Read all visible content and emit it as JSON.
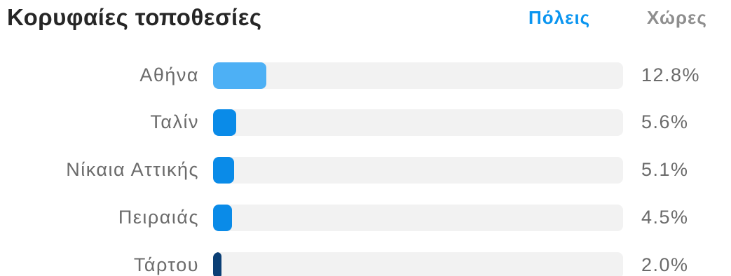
{
  "header": {
    "title": "Κορυφαίες τοποθεσίες",
    "tabs": [
      {
        "label": "Πόλεις",
        "active": true
      },
      {
        "label": "Χώρες",
        "active": false
      }
    ]
  },
  "colors": {
    "accent": "#0a95f0",
    "track": "#f2f2f2",
    "text_muted": "#6b6b6b",
    "title": "#262626"
  },
  "locations": [
    {
      "name": "Αθήνα",
      "value": "12.8%",
      "share": 12.8,
      "color": "#4db0f5"
    },
    {
      "name": "Ταλίν",
      "value": "5.6%",
      "share": 5.6,
      "color": "#0a8be8"
    },
    {
      "name": "Νίκαια Αττικής",
      "value": "5.1%",
      "share": 5.1,
      "color": "#0a8be8"
    },
    {
      "name": "Πειραιάς",
      "value": "4.5%",
      "share": 4.5,
      "color": "#0a8be8"
    },
    {
      "name": "Τάρτου",
      "value": "2.0%",
      "share": 2.0,
      "color": "#0b3f75"
    }
  ]
}
